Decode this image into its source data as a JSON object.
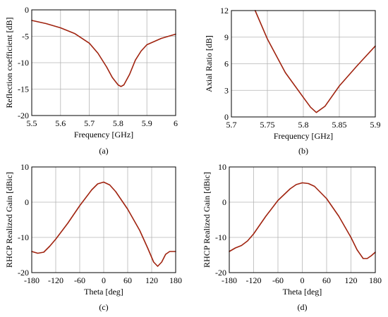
{
  "chart_data": [
    {
      "type": "line",
      "caption": "(a)",
      "xlabel": "Frequency [GHz]",
      "ylabel": "Reflection   coefficient [dB]",
      "xlim": [
        5.5,
        6.0
      ],
      "ylim": [
        -20,
        0
      ],
      "xticks": [
        5.5,
        5.6,
        5.7,
        5.8,
        5.9,
        6.0
      ],
      "xtick_labels": [
        "5.5",
        "5.6",
        "5.7",
        "5.8",
        "5.9",
        "6"
      ],
      "yticks": [
        -20,
        -15,
        -10,
        -5,
        0
      ],
      "ytick_labels": [
        "-20",
        "-15",
        "-10",
        "-5",
        "0"
      ],
      "grid": true,
      "color": "#a0230f",
      "series": [
        {
          "x": [
            5.5,
            5.55,
            5.6,
            5.65,
            5.7,
            5.73,
            5.76,
            5.78,
            5.8,
            5.81,
            5.82,
            5.84,
            5.86,
            5.88,
            5.9,
            5.95,
            6.0
          ],
          "y": [
            -2.0,
            -2.6,
            -3.4,
            -4.5,
            -6.3,
            -8.2,
            -10.8,
            -12.8,
            -14.2,
            -14.5,
            -14.2,
            -12.2,
            -9.5,
            -7.8,
            -6.6,
            -5.4,
            -4.6
          ]
        }
      ]
    },
    {
      "type": "line",
      "caption": "(b)",
      "xlabel": "Frequency [GHz]",
      "ylabel": "Axial Ratio [dB]",
      "xlim": [
        5.7,
        5.9
      ],
      "ylim": [
        0,
        12
      ],
      "xticks": [
        5.7,
        5.75,
        5.8,
        5.85,
        5.9
      ],
      "xtick_labels": [
        "5.7",
        "5.75",
        "5.8",
        "5.85",
        "5.9"
      ],
      "yticks": [
        0,
        3,
        6,
        9,
        12
      ],
      "ytick_labels": [
        "0",
        "3",
        "6",
        "9",
        "12"
      ],
      "grid": true,
      "color": "#a0230f",
      "series": [
        {
          "x": [
            5.733,
            5.75,
            5.775,
            5.8,
            5.81,
            5.818,
            5.83,
            5.85,
            5.875,
            5.9
          ],
          "y": [
            12.0,
            8.8,
            5.0,
            2.2,
            1.1,
            0.5,
            1.2,
            3.5,
            5.8,
            8.0
          ]
        }
      ]
    },
    {
      "type": "line",
      "caption": "(c)",
      "xlabel": "Theta [deg]",
      "ylabel": "RHCP Realized Gain [dBic]",
      "xlim": [
        -180,
        180
      ],
      "ylim": [
        -20,
        10
      ],
      "xticks": [
        -180,
        -120,
        -60,
        0,
        60,
        120,
        180
      ],
      "xtick_labels": [
        "-180",
        "-120",
        "-60",
        "0",
        "60",
        "120",
        "180"
      ],
      "yticks": [
        -20,
        -10,
        0,
        10
      ],
      "ytick_labels": [
        "-20",
        "-10",
        "0",
        "10"
      ],
      "grid": true,
      "color": "#a0230f",
      "series": [
        {
          "x": [
            -180,
            -165,
            -150,
            -135,
            -120,
            -90,
            -60,
            -30,
            -15,
            0,
            15,
            30,
            60,
            90,
            110,
            125,
            135,
            145,
            155,
            165,
            180
          ],
          "y": [
            -14.0,
            -14.5,
            -14.2,
            -12.5,
            -10.5,
            -6.0,
            -1.0,
            3.5,
            5.2,
            5.7,
            4.9,
            3.0,
            -2.0,
            -8.0,
            -13.0,
            -17.0,
            -18.2,
            -17.0,
            -14.8,
            -14.0,
            -14.0
          ]
        }
      ]
    },
    {
      "type": "line",
      "caption": "(d)",
      "xlabel": "Theta [deg]",
      "ylabel": "RHCP Realized Gain [dBic]",
      "xlim": [
        -180,
        180
      ],
      "ylim": [
        -20,
        10
      ],
      "xticks": [
        -180,
        -120,
        -60,
        0,
        60,
        120,
        180
      ],
      "xtick_labels": [
        "-180",
        "-120",
        "-60",
        "0",
        "60",
        "120",
        "180"
      ],
      "yticks": [
        -20,
        -10,
        0,
        10
      ],
      "ytick_labels": [
        "-20",
        "-10",
        "0",
        "10"
      ],
      "grid": true,
      "color": "#a0230f",
      "series": [
        {
          "x": [
            -180,
            -165,
            -150,
            -135,
            -120,
            -90,
            -60,
            -30,
            -15,
            0,
            15,
            30,
            60,
            90,
            120,
            135,
            150,
            160,
            170,
            180
          ],
          "y": [
            -14.0,
            -13.0,
            -12.3,
            -11.0,
            -9.0,
            -4.0,
            0.5,
            3.8,
            5.0,
            5.5,
            5.3,
            4.5,
            1.0,
            -4.0,
            -10.0,
            -13.5,
            -16.0,
            -16.0,
            -15.2,
            -14.2
          ]
        }
      ]
    }
  ]
}
